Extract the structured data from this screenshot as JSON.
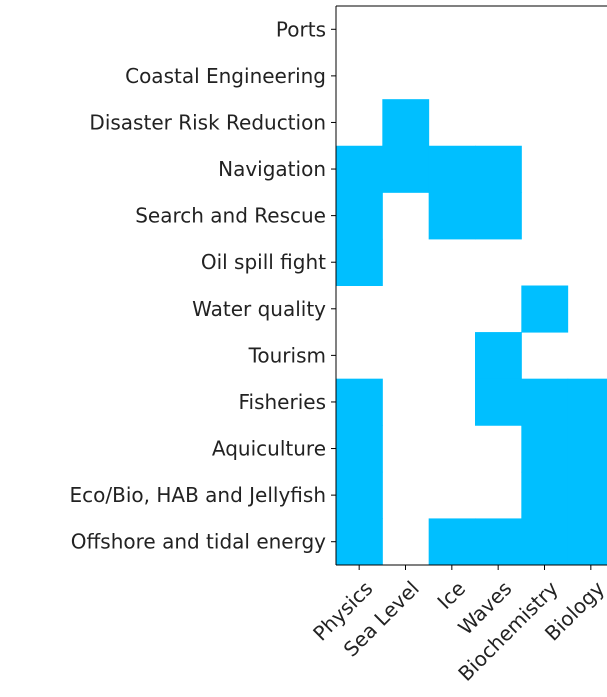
{
  "chart_data": {
    "type": "heatmap",
    "title": "",
    "xlabel": "",
    "ylabel": "",
    "columns": [
      "Physics",
      "Sea Level",
      "Ice",
      "Waves",
      "Biochemistry",
      "Biology"
    ],
    "rows": [
      "Ports",
      "Coastal Engineering",
      "Disaster Risk Reduction",
      "Navigation",
      "Search and Rescue",
      "Oil spill fight",
      "Water quality",
      "Tourism",
      "Fisheries",
      "Aquiculture",
      "Eco/Bio, HAB and Jellyfish",
      "Offshore and tidal energy"
    ],
    "matrix": [
      [
        0,
        0,
        0,
        0,
        0,
        0
      ],
      [
        0,
        0,
        0,
        0,
        0,
        0
      ],
      [
        0,
        1,
        0,
        0,
        0,
        0
      ],
      [
        1,
        1,
        1,
        1,
        0,
        0
      ],
      [
        1,
        0,
        1,
        1,
        0,
        0
      ],
      [
        1,
        0,
        0,
        0,
        0,
        0
      ],
      [
        0,
        0,
        0,
        0,
        1,
        0
      ],
      [
        0,
        0,
        0,
        1,
        0,
        0
      ],
      [
        1,
        0,
        0,
        1,
        1,
        1
      ],
      [
        1,
        0,
        0,
        0,
        1,
        1
      ],
      [
        1,
        0,
        0,
        0,
        1,
        1
      ],
      [
        1,
        0,
        1,
        1,
        1,
        1
      ]
    ],
    "grid": false,
    "colors": {
      "filled": "#00bfff",
      "empty": "#ffffff"
    }
  }
}
